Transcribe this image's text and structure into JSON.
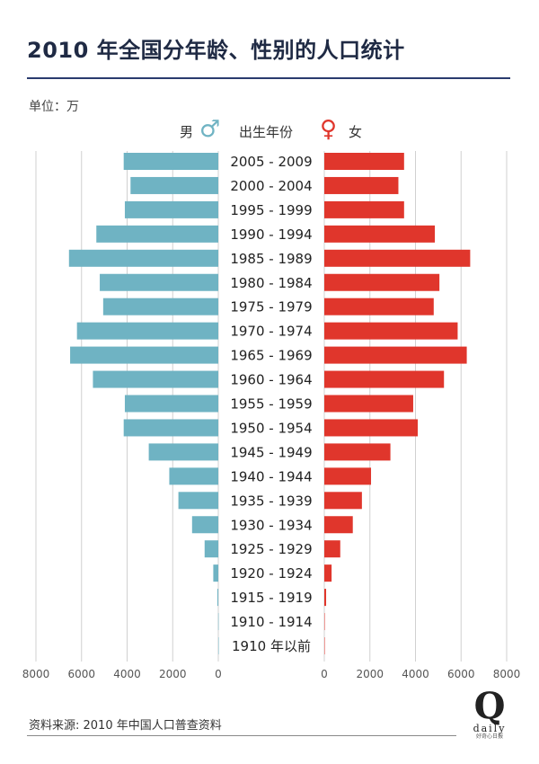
{
  "title": "2010 年全国分年龄、性别的人口统计",
  "unit_label": "单位：万",
  "legend": {
    "male_label": "男",
    "center_label": "出生年份",
    "female_label": "女",
    "male_symbol": "♂",
    "female_symbol": "♀"
  },
  "source": "资料来源: 2010 年中国人口普查资料",
  "logo": {
    "mark": "Q",
    "word": "daily",
    "tagline": "好奇心日报"
  },
  "colors": {
    "male": "#6fb3c3",
    "female": "#e0362c",
    "grid": "#d0d0d0",
    "title": "#1f2a44"
  },
  "chart_data": {
    "type": "bar",
    "orientation": "horizontal-population-pyramid",
    "categories": [
      "2005 - 2009",
      "2000 - 2004",
      "1995 - 1999",
      "1990 - 1994",
      "1985 - 1989",
      "1980 - 1984",
      "1975 - 1979",
      "1970 - 1974",
      "1965 - 1969",
      "1960 - 1964",
      "1955 - 1959",
      "1950 - 1954",
      "1945 - 1949",
      "1940 - 1944",
      "1935 - 1939",
      "1930 - 1934",
      "1925 - 1929",
      "1920 - 1924",
      "1915 - 1919",
      "1910 - 1914",
      "1910 年以前"
    ],
    "series": [
      {
        "name": "男",
        "values": [
          4150,
          3850,
          4100,
          5350,
          6550,
          5200,
          5050,
          6200,
          6500,
          5500,
          4100,
          4150,
          3050,
          2150,
          1750,
          1150,
          600,
          220,
          40,
          5,
          1
        ]
      },
      {
        "name": "女",
        "values": [
          3500,
          3250,
          3500,
          4850,
          6400,
          5050,
          4800,
          5850,
          6250,
          5250,
          3900,
          4100,
          2900,
          2050,
          1650,
          1250,
          700,
          320,
          80,
          10,
          2
        ]
      }
    ],
    "ticks": [
      "8000",
      "6000",
      "4000",
      "2000",
      "0"
    ],
    "female_ticks": [
      "0",
      "2000",
      "4000",
      "6000",
      "8000"
    ],
    "xlim": [
      0,
      8000
    ],
    "grid": true
  }
}
